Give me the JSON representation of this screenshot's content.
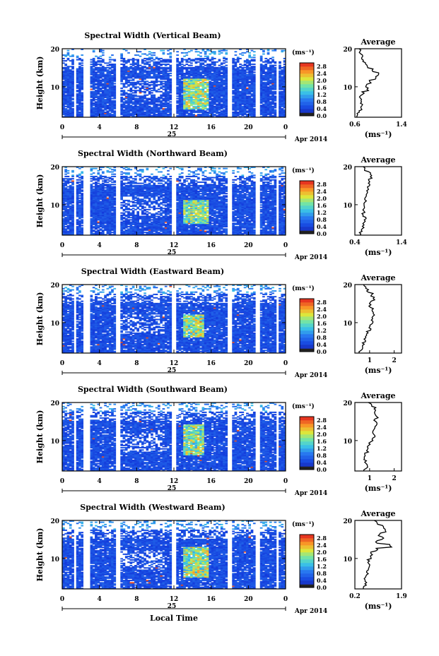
{
  "figure": {
    "x_label": "Local Time",
    "date_day": "25",
    "date_month_year": "Apr 2014",
    "colorbar_unit": "(ms⁻¹)",
    "avg_title": "Average",
    "avg_unit": "(ms⁻¹)",
    "y_label": "Height (km)"
  },
  "chart_data": [
    {
      "type": "heatmap",
      "title": "Spectral Width (Vertical Beam)",
      "xlabel": "Local Time",
      "ylabel": "Height (km)",
      "xlim": [
        0,
        24
      ],
      "ylim": [
        2,
        20
      ],
      "xticks": [
        "0",
        "4",
        "8",
        "12",
        "16",
        "20",
        "0"
      ],
      "yticks": [
        "10",
        "20"
      ],
      "colorbar": {
        "unit": "(ms-1)",
        "ticks": [
          "0.0",
          "0.4",
          "0.8",
          "1.2",
          "1.6",
          "2.0",
          "2.4",
          "2.8"
        ],
        "range": [
          0,
          3.0
        ]
      },
      "data_gaps_hours": [
        [
          1.3,
          1.6
        ],
        [
          2.3,
          2.9
        ],
        [
          5.8,
          6.2
        ],
        [
          11.8,
          12.3
        ],
        [
          17.8,
          18.2
        ],
        [
          20.8,
          21.3
        ],
        [
          23.0,
          23.2
        ]
      ],
      "enhanced_region": {
        "time": [
          12.8,
          15.5
        ],
        "height": [
          4,
          12
        ],
        "value": 2.4
      },
      "average_profile": {
        "title": "Average",
        "xlim": [
          0.6,
          1.4
        ],
        "xticks": [
          "0.6",
          "1.4"
        ],
        "yticks": [
          "10",
          "20"
        ],
        "heights": [
          2,
          3,
          4,
          5,
          6,
          7,
          8,
          9,
          10,
          11,
          12,
          13,
          14,
          15,
          16,
          17,
          18,
          19,
          20
        ],
        "values": [
          0.64,
          0.66,
          0.7,
          0.72,
          0.7,
          0.68,
          0.74,
          0.82,
          0.8,
          0.86,
          0.95,
          1.0,
          0.9,
          0.82,
          0.76,
          0.74,
          0.72,
          0.7,
          0.68
        ]
      }
    },
    {
      "type": "heatmap",
      "title": "Spectral Width (Northward Beam)",
      "xlabel": "Local Time",
      "ylabel": "Height (km)",
      "xlim": [
        0,
        24
      ],
      "ylim": [
        2,
        20
      ],
      "xticks": [
        "0",
        "4",
        "8",
        "12",
        "16",
        "20",
        "0"
      ],
      "yticks": [
        "10",
        "20"
      ],
      "colorbar": {
        "unit": "(ms-1)",
        "ticks": [
          "0.0",
          "0.4",
          "0.8",
          "1.2",
          "1.6",
          "2.0",
          "2.4",
          "2.8"
        ],
        "range": [
          0,
          3.0
        ]
      },
      "data_gaps_hours": [
        [
          1.3,
          1.6
        ],
        [
          2.3,
          2.9
        ],
        [
          5.8,
          6.2
        ],
        [
          11.8,
          12.3
        ],
        [
          17.8,
          18.2
        ],
        [
          20.8,
          21.3
        ],
        [
          23.0,
          23.2
        ]
      ],
      "enhanced_region": {
        "time": [
          12.8,
          15.5
        ],
        "height": [
          5,
          11
        ],
        "value": 2.2
      },
      "average_profile": {
        "title": "Average",
        "xlim": [
          0.4,
          1.4
        ],
        "xticks": [
          "0.4",
          "1.4"
        ],
        "yticks": [
          "10",
          "20"
        ],
        "heights": [
          2,
          3,
          4,
          5,
          6,
          7,
          8,
          9,
          10,
          11,
          12,
          13,
          14,
          15,
          16,
          17,
          18,
          19,
          20
        ],
        "values": [
          0.5,
          0.55,
          0.58,
          0.6,
          0.62,
          0.58,
          0.6,
          0.62,
          0.6,
          0.64,
          0.62,
          0.66,
          0.68,
          0.7,
          0.72,
          0.74,
          0.72,
          0.6,
          0.55
        ]
      }
    },
    {
      "type": "heatmap",
      "title": "Spectral Width (Eastward Beam)",
      "xlabel": "Local Time",
      "ylabel": "Height (km)",
      "xlim": [
        0,
        24
      ],
      "ylim": [
        2,
        20
      ],
      "xticks": [
        "0",
        "4",
        "8",
        "12",
        "16",
        "20",
        "0"
      ],
      "yticks": [
        "10",
        "20"
      ],
      "colorbar": {
        "unit": "(ms-1)",
        "ticks": [
          "0.0",
          "0.4",
          "0.8",
          "1.2",
          "1.6",
          "2.0",
          "2.4",
          "2.8"
        ],
        "range": [
          0,
          3.0
        ]
      },
      "data_gaps_hours": [
        [
          1.3,
          1.6
        ],
        [
          2.3,
          2.9
        ],
        [
          5.8,
          6.2
        ],
        [
          11.8,
          12.3
        ],
        [
          17.8,
          18.2
        ],
        [
          20.8,
          21.3
        ],
        [
          23.0,
          23.2
        ]
      ],
      "enhanced_region": {
        "time": [
          12.8,
          15.0
        ],
        "height": [
          6,
          12
        ],
        "value": 2.4
      },
      "average_profile": {
        "title": "Average",
        "xlim": [
          0.4,
          2.3
        ],
        "xticks": [
          "1",
          "2"
        ],
        "yticks": [
          "10",
          "20"
        ],
        "heights": [
          2,
          3,
          4,
          5,
          6,
          7,
          8,
          9,
          10,
          11,
          12,
          13,
          14,
          15,
          16,
          17,
          18,
          19,
          20
        ],
        "values": [
          0.6,
          0.7,
          0.75,
          0.8,
          0.85,
          0.9,
          1.0,
          1.05,
          1.1,
          1.15,
          1.2,
          1.1,
          1.0,
          1.05,
          1.15,
          1.1,
          0.9,
          0.8,
          0.75
        ]
      }
    },
    {
      "type": "heatmap",
      "title": "Spectral Width (Southward Beam)",
      "xlabel": "Local Time",
      "ylabel": "Height (km)",
      "xlim": [
        0,
        24
      ],
      "ylim": [
        2,
        20
      ],
      "xticks": [
        "0",
        "4",
        "8",
        "12",
        "16",
        "20",
        "0"
      ],
      "yticks": [
        "10",
        "20"
      ],
      "colorbar": {
        "unit": "(ms-1)",
        "ticks": [
          "0.0",
          "0.4",
          "0.8",
          "1.2",
          "1.6",
          "2.0",
          "2.4",
          "2.8"
        ],
        "range": [
          0,
          3.0
        ]
      },
      "data_gaps_hours": [
        [
          1.3,
          1.6
        ],
        [
          2.3,
          2.9
        ],
        [
          5.8,
          6.2
        ],
        [
          11.8,
          12.3
        ],
        [
          17.8,
          18.2
        ],
        [
          20.8,
          21.3
        ],
        [
          23.0,
          23.2
        ]
      ],
      "enhanced_region": {
        "time": [
          12.8,
          15.0
        ],
        "height": [
          6,
          14
        ],
        "value": 2.3
      },
      "average_profile": {
        "title": "Average",
        "xlim": [
          0.4,
          2.3
        ],
        "xticks": [
          "1",
          "2"
        ],
        "yticks": [
          "10",
          "20"
        ],
        "heights": [
          2,
          3,
          4,
          5,
          6,
          7,
          8,
          9,
          10,
          11,
          12,
          13,
          14,
          15,
          16,
          17,
          18,
          19,
          20
        ],
        "values": [
          0.8,
          0.9,
          0.85,
          0.8,
          0.85,
          0.9,
          0.95,
          1.0,
          1.1,
          1.2,
          1.1,
          1.2,
          1.3,
          1.2,
          1.3,
          1.25,
          1.2,
          1.1,
          1.0
        ]
      }
    },
    {
      "type": "heatmap",
      "title": "Spectral Width (Westward Beam)",
      "xlabel": "Local Time",
      "ylabel": "Height (km)",
      "xlim": [
        0,
        24
      ],
      "ylim": [
        2,
        20
      ],
      "xticks": [
        "0",
        "4",
        "8",
        "12",
        "16",
        "20",
        "0"
      ],
      "yticks": [
        "10",
        "20"
      ],
      "colorbar": {
        "unit": "(ms-1)",
        "ticks": [
          "0.0",
          "0.4",
          "0.8",
          "1.2",
          "1.6",
          "2.0",
          "2.4",
          "2.8"
        ],
        "range": [
          0,
          3.0
        ]
      },
      "data_gaps_hours": [
        [
          1.3,
          1.6
        ],
        [
          2.3,
          2.9
        ],
        [
          5.8,
          6.2
        ],
        [
          11.8,
          12.3
        ],
        [
          17.8,
          18.2
        ],
        [
          20.8,
          21.3
        ],
        [
          23.0,
          23.2
        ]
      ],
      "enhanced_region": {
        "time": [
          12.8,
          15.5
        ],
        "height": [
          5,
          13
        ],
        "value": 2.4
      },
      "average_profile": {
        "title": "Average",
        "xlim": [
          0.2,
          1.9
        ],
        "xticks": [
          "0.2",
          "1.9"
        ],
        "yticks": [
          "10",
          "20"
        ],
        "heights": [
          2,
          3,
          4,
          5,
          6,
          7,
          8,
          9,
          10,
          11,
          12,
          13,
          14,
          15,
          16,
          17,
          18,
          19,
          20
        ],
        "values": [
          0.5,
          0.6,
          0.55,
          0.6,
          0.65,
          0.7,
          0.75,
          0.7,
          0.75,
          0.8,
          1.0,
          1.5,
          1.0,
          1.2,
          1.1,
          1.3,
          1.2,
          1.0,
          0.9
        ]
      }
    }
  ]
}
